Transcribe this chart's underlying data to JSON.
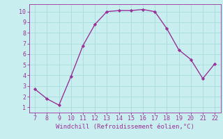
{
  "x": [
    7,
    8,
    9,
    10,
    11,
    12,
    13,
    14,
    15,
    16,
    17,
    18,
    19,
    20,
    21,
    22
  ],
  "y": [
    2.7,
    1.8,
    1.2,
    3.9,
    6.8,
    8.8,
    10.0,
    10.1,
    10.1,
    10.2,
    10.0,
    8.4,
    6.4,
    5.5,
    3.7,
    5.1
  ],
  "line_color": "#993399",
  "marker": "D",
  "marker_size": 2.2,
  "line_width": 1.0,
  "background_color": "#c8eef0",
  "grid_color": "#aadddd",
  "xlabel": "Windchill (Refroidissement éolien,°C)",
  "xlabel_color": "#993399",
  "tick_color": "#993399",
  "spine_color": "#993399",
  "xlim": [
    6.5,
    22.5
  ],
  "ylim": [
    0.5,
    10.7
  ],
  "xticks": [
    7,
    8,
    9,
    10,
    11,
    12,
    13,
    14,
    15,
    16,
    17,
    18,
    19,
    20,
    21,
    22
  ],
  "yticks": [
    1,
    2,
    3,
    4,
    5,
    6,
    7,
    8,
    9,
    10
  ],
  "tick_fontsize": 6,
  "xlabel_fontsize": 6.5
}
